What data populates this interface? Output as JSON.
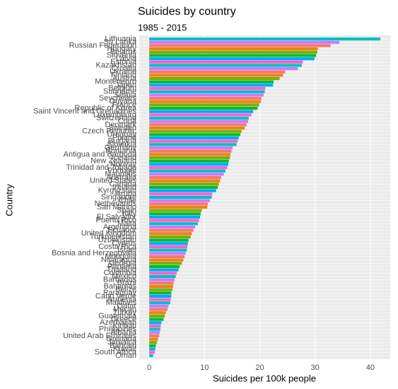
{
  "chart_data": {
    "type": "barh",
    "title": "Suicides by country",
    "subtitle": "1985 - 2015",
    "xlabel": "Suicides per 100k people",
    "ylabel": "Country",
    "categories": [
      "Lithuania",
      "Sri Lanka",
      "Russian Federation",
      "Hungary",
      "Belarus",
      "Slovenia",
      "Latvia",
      "Estonia",
      "Kazakhstan",
      "Croatia",
      "Ukraine",
      "Finland",
      "Austria",
      "Montenegro",
      "Japan",
      "Belgium",
      "Suriname",
      "Serbia",
      "Seychelles",
      "Guyana",
      "France",
      "Republic of Korea",
      "Saint Vincent and Grenadines",
      "Luxembourg",
      "Switzerland",
      "Cuba",
      "Denmark",
      "Sweden",
      "Czech Republic",
      "Uruguay",
      "Poland",
      "Bulgaria",
      "Slovakia",
      "Germany",
      "Romania",
      "Antigua and Barbuda",
      "Iceland",
      "New Zealand",
      "Norway",
      "Trinidad and Tobago",
      "Portugal",
      "Mauritius",
      "Australia",
      "United States",
      "Canada",
      "Ireland",
      "Kyrgyzstan",
      "Aruba",
      "Singapore",
      "Chile",
      "Netherlands",
      "San Marino",
      "Spain",
      "Italy",
      "El Salvador",
      "Puerto Rico",
      "Malta",
      "Argentina",
      "Ecuador",
      "United Kingdom",
      "Turkmenistan",
      "Uzbekistan",
      "Cyprus",
      "Costa Rica",
      "Israel",
      "Bosnia and Herzegovina",
      "Mongolia",
      "Nicaragua",
      "Georgia",
      "Panama",
      "Thailand",
      "Colombia",
      "Mexico",
      "Barbados",
      "Brazil",
      "Bahamas",
      "Belize",
      "Paraguay",
      "Cabo Verde",
      "Armenia",
      "Maldives",
      "Qatar",
      "Macau",
      "Turkey",
      "Guatemala",
      "Greece",
      "Azerbaijan",
      "Kiribati",
      "Philippines",
      "Albania",
      "United Arab Emirates",
      "Grenada",
      "Jamaica",
      "Bahrain",
      "Kuwait",
      "South Africa",
      "Oman"
    ],
    "values": [
      41.8,
      34.4,
      32.8,
      30.5,
      30.4,
      30.2,
      29.9,
      27.8,
      27.6,
      26.9,
      24.6,
      24.2,
      23.6,
      22.5,
      22.4,
      21.0,
      20.9,
      20.7,
      20.3,
      20.2,
      19.9,
      19.6,
      18.8,
      18.5,
      18.0,
      17.9,
      17.6,
      17.3,
      16.7,
      16.5,
      16.2,
      16.0,
      15.8,
      15.1,
      14.9,
      14.7,
      14.6,
      14.4,
      14.3,
      14.1,
      13.8,
      13.5,
      13.0,
      12.8,
      12.6,
      12.4,
      12.1,
      11.4,
      11.3,
      11.0,
      10.6,
      10.5,
      9.5,
      9.3,
      9.2,
      9.0,
      8.8,
      8.3,
      8.0,
      7.7,
      7.5,
      7.1,
      7.0,
      6.9,
      6.8,
      6.6,
      6.4,
      6.2,
      5.9,
      5.5,
      5.3,
      5.0,
      4.8,
      4.6,
      4.4,
      4.3,
      4.2,
      4.0,
      4.0,
      3.9,
      3.8,
      3.5,
      3.3,
      3.0,
      2.8,
      2.6,
      2.2,
      2.1,
      2.0,
      1.9,
      1.8,
      1.6,
      1.4,
      1.2,
      1.1,
      1.0,
      0.7
    ],
    "palette": [
      "#00BFC4",
      "#C77CFF",
      "#F8766D",
      "#E68613",
      "#7CAE00",
      "#00BA38",
      "#00A9FF",
      "#FF61CC"
    ],
    "xlim": [
      -1.8,
      43.6
    ],
    "xticks": [
      0,
      10,
      20,
      30,
      40
    ],
    "grid": true
  }
}
